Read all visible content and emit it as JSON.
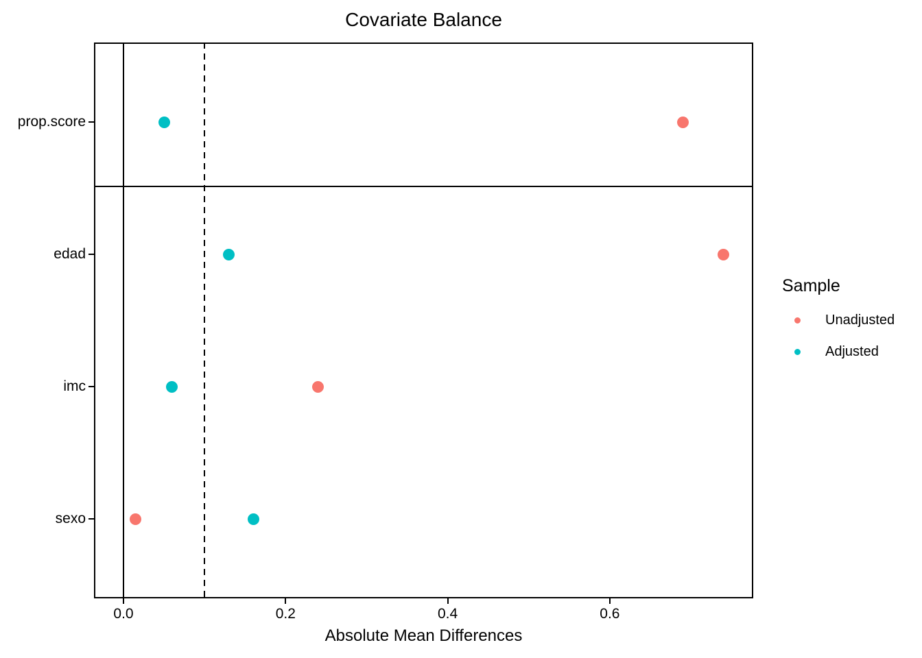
{
  "title": "Covariate Balance",
  "axes": {
    "x_title": "Absolute Mean Differences",
    "x_tick_labels": [
      "0.0",
      "0.2",
      "0.4",
      "0.6"
    ],
    "y_tick_labels": [
      "prop.score",
      "edad",
      "imc",
      "sexo"
    ]
  },
  "legend": {
    "title": "Sample",
    "items": [
      {
        "label": "Unadjusted",
        "color": "#F8766D"
      },
      {
        "label": "Adjusted",
        "color": "#00BFC4"
      }
    ]
  },
  "chart_data": {
    "type": "scatter",
    "title": "Covariate Balance",
    "xlabel": "Absolute Mean Differences",
    "ylabel": "",
    "categories": [
      "prop.score",
      "edad",
      "imc",
      "sexo"
    ],
    "series": [
      {
        "name": "Unadjusted",
        "color": "#F8766D",
        "values": [
          0.69,
          0.74,
          0.24,
          0.015
        ]
      },
      {
        "name": "Adjusted",
        "color": "#00BFC4",
        "values": [
          0.05,
          0.13,
          0.06,
          0.16
        ]
      }
    ],
    "x_ticks": [
      0,
      0.2,
      0.4,
      0.6
    ],
    "xlim": [
      -0.036,
      0.777
    ],
    "reference_lines": [
      {
        "x": 0,
        "style": "solid"
      },
      {
        "x": 0.1,
        "style": "dashed"
      }
    ],
    "facet_separator_after_category": "prop.score",
    "legend_title": "Sample",
    "legend_position": "right",
    "grid": false
  }
}
